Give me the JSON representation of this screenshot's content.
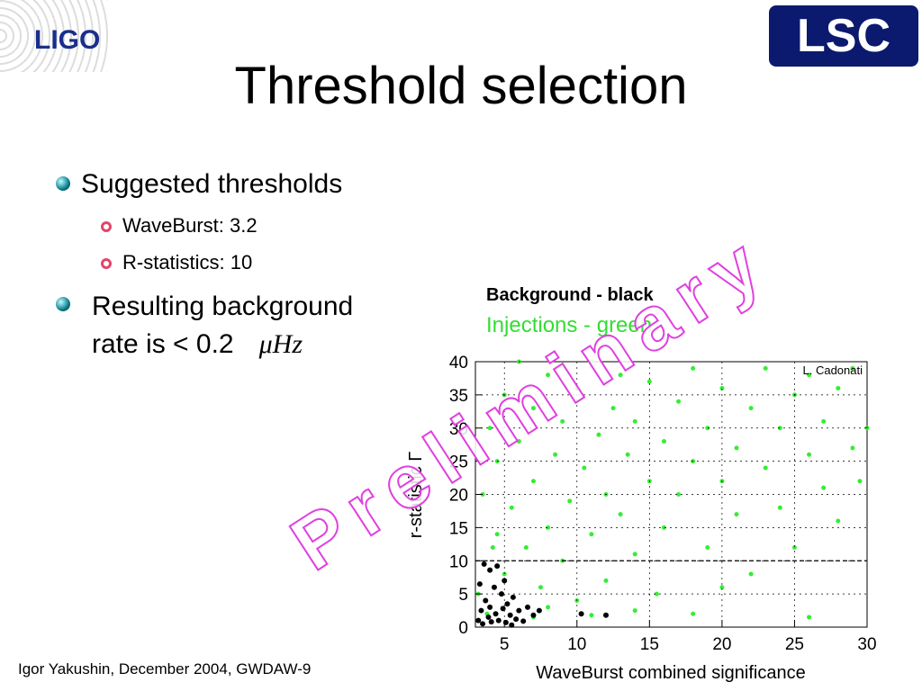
{
  "header": {
    "logo_left": "LIGO",
    "logo_right": "LSC",
    "title": "Threshold selection"
  },
  "bullets": [
    {
      "text": "Suggested thresholds",
      "sub": [
        "WaveBurst: 3.2",
        "R-statistics: 10"
      ]
    },
    {
      "text": "Resulting background rate is < 0.2",
      "unit": "μHz"
    }
  ],
  "footer": "Igor Yakushin, December 2004, GWDAW-9",
  "watermark": "Preliminary",
  "chart_data": {
    "type": "scatter",
    "xlabel": "WaveBurst combined significance",
    "ylabel": "r-statistic Γ",
    "annotation": "L. Cadonati",
    "xlim": [
      3,
      30
    ],
    "ylim": [
      0,
      40
    ],
    "xticks": [
      5,
      10,
      15,
      20,
      25,
      30
    ],
    "yticks": [
      0,
      5,
      10,
      15,
      20,
      25,
      30,
      35,
      40
    ],
    "grid": true,
    "hlines": [
      10
    ],
    "series": [
      {
        "name": "Injections - green",
        "color": "#33ee33",
        "x": [
          3.5,
          4,
          4.2,
          4.5,
          5,
          5,
          5.5,
          6,
          6,
          6.5,
          7,
          7,
          7.5,
          8,
          8,
          8.5,
          9,
          9,
          9.5,
          10,
          10,
          10.5,
          11,
          11,
          11.5,
          12,
          12,
          12.5,
          13,
          13,
          13.5,
          14,
          14,
          15,
          15,
          15.5,
          16,
          16,
          17,
          17,
          18,
          18,
          19,
          19,
          20,
          20,
          21,
          21,
          22,
          22,
          23,
          23,
          24,
          24,
          25,
          25,
          26,
          26,
          27,
          27,
          28,
          28,
          29,
          29.5,
          3.2,
          3.8,
          4.5,
          8,
          11,
          14,
          18,
          26,
          20,
          30,
          29,
          7
        ],
        "values": [
          20,
          30,
          12,
          25,
          35,
          8,
          18,
          28,
          40,
          12,
          22,
          33,
          6,
          15,
          38,
          26,
          10,
          31,
          19,
          4,
          36,
          24,
          14,
          40,
          29,
          7,
          20,
          33,
          17,
          38,
          26,
          11,
          31,
          22,
          37,
          5,
          28,
          15,
          34,
          20,
          25,
          39,
          12,
          30,
          22,
          36,
          27,
          17,
          33,
          8,
          24,
          39,
          30,
          18,
          35,
          12,
          26,
          38,
          21,
          31,
          16,
          36,
          27,
          22,
          5,
          2,
          14,
          3,
          1.8,
          2.5,
          2,
          1.5,
          6,
          30,
          39,
          1.5
        ]
      },
      {
        "name": "Background - black",
        "color": "#000000",
        "x": [
          3.2,
          3.4,
          3.5,
          3.7,
          3.9,
          4,
          4.1,
          4.3,
          4.4,
          4.6,
          4.8,
          4.9,
          5.1,
          5.2,
          5.4,
          5.6,
          5.8,
          6,
          6.3,
          6.6,
          7,
          7.4,
          3.6,
          4,
          4.5,
          5,
          10.3,
          12,
          3.3,
          5.5
        ],
        "values": [
          1,
          2.5,
          0.5,
          4,
          1.5,
          3,
          0.8,
          6,
          2,
          1,
          5,
          2.8,
          0.7,
          3.5,
          1.8,
          4.5,
          1.2,
          2.5,
          0.9,
          3,
          1.8,
          2.5,
          9.5,
          8.6,
          9.2,
          7,
          2,
          1.8,
          6.5,
          0.3
        ]
      }
    ]
  }
}
